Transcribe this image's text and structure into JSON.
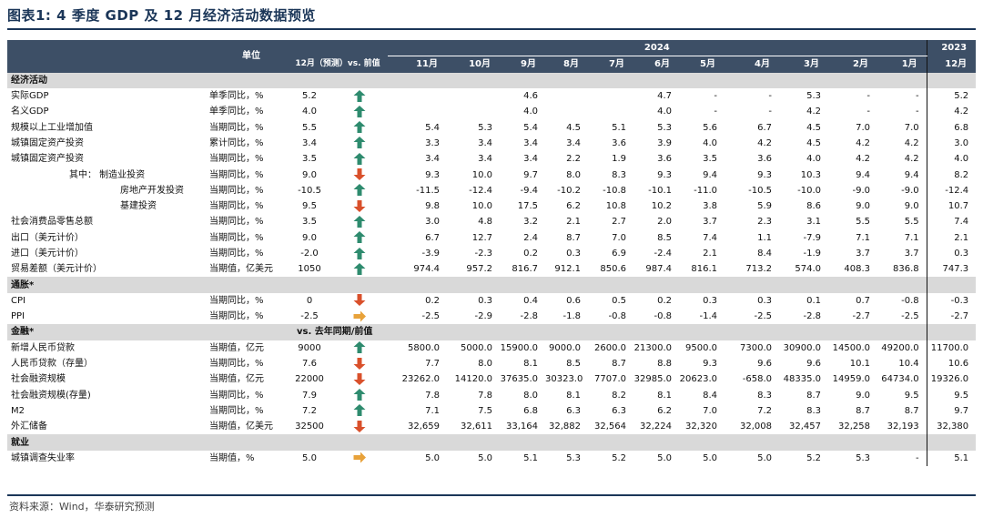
{
  "title": "图表1:  4 季度 GDP 及 12 月经济活动数据预览",
  "header": {
    "unit_label": "单位",
    "year_2024": "2024",
    "year_2023": "2023",
    "columns": [
      "12月（预测）vs. 前值",
      "11月",
      "10月",
      "9月",
      "8月",
      "7月",
      "6月",
      "5月",
      "4月",
      "3月",
      "2月",
      "1月",
      "12月"
    ]
  },
  "sections": [
    {
      "title": "经济活动",
      "note": "",
      "rows": [
        {
          "label": "实际GDP",
          "indent": 0,
          "unit": "单季同比，%",
          "forecast": "5.2",
          "arrow": "up",
          "values": [
            "",
            "",
            "4.6",
            "",
            "",
            "4.7",
            "-",
            "-",
            "5.3",
            "-",
            "-",
            "5.2"
          ]
        },
        {
          "label": "名义GDP",
          "indent": 0,
          "unit": "单季同比，%",
          "forecast": "4.0",
          "arrow": "up",
          "values": [
            "",
            "",
            "4.0",
            "",
            "",
            "4.0",
            "-",
            "-",
            "4.2",
            "-",
            "-",
            "4.2"
          ]
        },
        {
          "label": "规模以上工业增加值",
          "indent": 0,
          "unit": "当期同比，%",
          "forecast": "5.5",
          "arrow": "up",
          "values": [
            "5.4",
            "5.3",
            "5.4",
            "4.5",
            "5.1",
            "5.3",
            "5.6",
            "6.7",
            "4.5",
            "7.0",
            "7.0",
            "6.8"
          ]
        },
        {
          "label": "城镇固定资产投资",
          "indent": 0,
          "unit": "累计同比，%",
          "forecast": "3.4",
          "arrow": "up",
          "values": [
            "3.3",
            "3.4",
            "3.4",
            "3.4",
            "3.6",
            "3.9",
            "4.0",
            "4.2",
            "4.5",
            "4.2",
            "4.2",
            "3.0"
          ]
        },
        {
          "label": "城镇固定资产投资",
          "indent": 0,
          "unit": "当期同比，%",
          "forecast": "3.5",
          "arrow": "up",
          "values": [
            "3.4",
            "3.4",
            "3.4",
            "2.2",
            "1.9",
            "3.6",
            "3.5",
            "3.6",
            "4.0",
            "4.2",
            "4.2",
            "4.0"
          ]
        },
        {
          "label": "其中：  制造业投资",
          "indent": 1,
          "unit": "当期同比，%",
          "forecast": "9.0",
          "arrow": "down",
          "values": [
            "9.3",
            "10.0",
            "9.7",
            "8.0",
            "8.3",
            "9.3",
            "9.4",
            "9.3",
            "10.3",
            "9.4",
            "9.4",
            "8.2"
          ]
        },
        {
          "label": "房地产开发投资",
          "indent": 2,
          "unit": "当期同比，%",
          "forecast": "-10.5",
          "arrow": "up",
          "values": [
            "-11.5",
            "-12.4",
            "-9.4",
            "-10.2",
            "-10.8",
            "-10.1",
            "-11.0",
            "-10.5",
            "-10.0",
            "-9.0",
            "-9.0",
            "-12.4"
          ]
        },
        {
          "label": "基建投资",
          "indent": 2,
          "unit": "当期同比，%",
          "forecast": "9.5",
          "arrow": "down",
          "values": [
            "9.8",
            "10.0",
            "17.5",
            "6.2",
            "10.8",
            "10.2",
            "3.8",
            "5.9",
            "8.6",
            "9.0",
            "9.0",
            "10.7"
          ]
        },
        {
          "label": "社会消费品零售总额",
          "indent": 0,
          "unit": "当期同比，%",
          "forecast": "3.5",
          "arrow": "up",
          "values": [
            "3.0",
            "4.8",
            "3.2",
            "2.1",
            "2.7",
            "2.0",
            "3.7",
            "2.3",
            "3.1",
            "5.5",
            "5.5",
            "7.4"
          ]
        },
        {
          "label": "出口（美元计价）",
          "indent": 0,
          "unit": "当期同比，%",
          "forecast": "9.0",
          "arrow": "up",
          "values": [
            "6.7",
            "12.7",
            "2.4",
            "8.7",
            "7.0",
            "8.5",
            "7.4",
            "1.1",
            "-7.9",
            "7.1",
            "7.1",
            "2.1"
          ]
        },
        {
          "label": "进口（美元计价）",
          "indent": 0,
          "unit": "当期同比，%",
          "forecast": "-2.0",
          "arrow": "up",
          "values": [
            "-3.9",
            "-2.3",
            "0.2",
            "0.3",
            "6.9",
            "-2.4",
            "2.1",
            "8.4",
            "-1.9",
            "3.7",
            "3.7",
            "0.3"
          ]
        },
        {
          "label": "贸易差额（美元计价）",
          "indent": 0,
          "unit": "当期值，亿美元",
          "forecast": "1050",
          "arrow": "up",
          "values": [
            "974.4",
            "957.2",
            "816.7",
            "912.1",
            "850.6",
            "987.4",
            "816.1",
            "713.2",
            "574.0",
            "408.3",
            "836.8",
            "747.3"
          ]
        }
      ]
    },
    {
      "title": "通胀*",
      "note": "",
      "rows": [
        {
          "label": "CPI",
          "indent": 0,
          "unit": "当期同比，%",
          "forecast": "0",
          "arrow": "down",
          "values": [
            "0.2",
            "0.3",
            "0.4",
            "0.6",
            "0.5",
            "0.2",
            "0.3",
            "0.3",
            "0.1",
            "0.7",
            "-0.8",
            "-0.3"
          ]
        },
        {
          "label": "PPI",
          "indent": 0,
          "unit": "当期同比，%",
          "forecast": "-2.5",
          "arrow": "right",
          "values": [
            "-2.5",
            "-2.9",
            "-2.8",
            "-1.8",
            "-0.8",
            "-0.8",
            "-1.4",
            "-2.5",
            "-2.8",
            "-2.7",
            "-2.5",
            "-2.7"
          ]
        }
      ]
    },
    {
      "title": "金融*",
      "note": "vs. 去年同期/前值",
      "rows": [
        {
          "label": "新增人民币贷款",
          "indent": 0,
          "unit": "当期值，亿元",
          "forecast": "9000",
          "arrow": "up",
          "values": [
            "5800.0",
            "5000.0",
            "15900.0",
            "9000.0",
            "2600.0",
            "21300.0",
            "9500.0",
            "7300.0",
            "30900.0",
            "14500.0",
            "49200.0",
            "11700.0"
          ]
        },
        {
          "label": "人民币贷款（存量）",
          "indent": 0,
          "unit": "当期同比，%",
          "forecast": "7.6",
          "arrow": "down",
          "values": [
            "7.7",
            "8.0",
            "8.1",
            "8.5",
            "8.7",
            "8.8",
            "9.3",
            "9.6",
            "9.6",
            "10.1",
            "10.4",
            "10.6"
          ]
        },
        {
          "label": "社会融资规模",
          "indent": 0,
          "unit": "当期值，亿元",
          "forecast": "22000",
          "arrow": "down",
          "values": [
            "23262.0",
            "14120.0",
            "37635.0",
            "30323.0",
            "7707.0",
            "32985.0",
            "20623.0",
            "-658.0",
            "48335.0",
            "14959.0",
            "64734.0",
            "19326.0"
          ]
        },
        {
          "label": "社会融资规模(存量)",
          "indent": 0,
          "unit": "当期同比，%",
          "forecast": "7.9",
          "arrow": "up",
          "values": [
            "7.8",
            "7.8",
            "8.0",
            "8.1",
            "8.2",
            "8.1",
            "8.4",
            "8.3",
            "8.7",
            "9.0",
            "9.5",
            "9.5"
          ]
        },
        {
          "label": "M2",
          "indent": 0,
          "unit": "当期同比，%",
          "forecast": "7.2",
          "arrow": "up",
          "values": [
            "7.1",
            "7.5",
            "6.8",
            "6.3",
            "6.3",
            "6.2",
            "7.0",
            "7.2",
            "8.3",
            "8.7",
            "8.7",
            "9.7"
          ]
        },
        {
          "label": "外汇储备",
          "indent": 0,
          "unit": "当期值，亿美元",
          "forecast": "32500",
          "arrow": "down",
          "values": [
            "32,659",
            "32,611",
            "33,164",
            "32,882",
            "32,564",
            "32,224",
            "32,320",
            "32,008",
            "32,457",
            "32,258",
            "32,193",
            "32,380"
          ]
        }
      ]
    },
    {
      "title": "就业",
      "note": "",
      "rows": [
        {
          "label": "城镇调查失业率",
          "indent": 0,
          "unit": "当期值，%",
          "forecast": "5.0",
          "arrow": "right",
          "values": [
            "5.0",
            "5.0",
            "5.1",
            "5.3",
            "5.2",
            "5.0",
            "5.0",
            "5.0",
            "5.2",
            "5.3",
            "-",
            "5.1"
          ]
        }
      ]
    }
  ],
  "source": "资料来源：Wind，华泰研究预测",
  "colors": {
    "header_bg": "#3d4f66",
    "section_bg": "#d9d9d9",
    "arrow_up": "#2e8b6e",
    "arrow_down": "#d9502b",
    "arrow_right": "#e8a23a",
    "title": "#1b3658"
  }
}
